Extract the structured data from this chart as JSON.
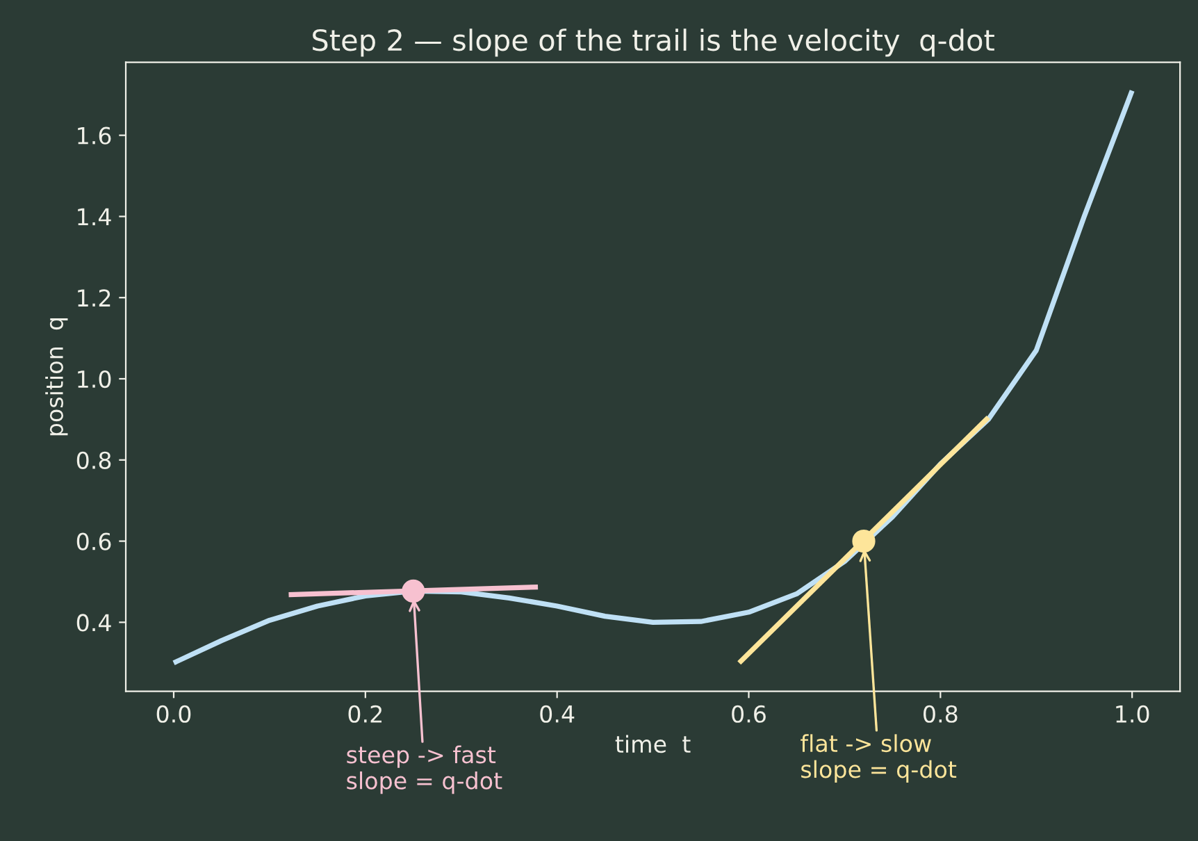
{
  "chart_data": {
    "type": "line",
    "title": "Step 2 — slope of the trail is the velocity  q-dot",
    "xlabel": "time  t",
    "ylabel": "position  q",
    "x": [
      0,
      0.05,
      0.1,
      0.15,
      0.2,
      0.25,
      0.3,
      0.35,
      0.4,
      0.45,
      0.5,
      0.55,
      0.6,
      0.65,
      0.7,
      0.75,
      0.8,
      0.85,
      0.9,
      0.95,
      1.0
    ],
    "series": [
      {
        "color": "#bfe0f5",
        "values": [
          0.3,
          0.355,
          0.405,
          0.44,
          0.465,
          0.477,
          0.475,
          0.46,
          0.44,
          0.415,
          0.4,
          0.402,
          0.425,
          0.47,
          0.55,
          0.66,
          0.79,
          0.9,
          1.07,
          1.4,
          1.71
        ]
      },
      {
        "type": "line",
        "color": "#f7c1d0",
        "x": [
          0.12,
          0.38
        ],
        "values": [
          0.468,
          0.487
        ]
      },
      {
        "type": "line",
        "color": "#fde59a",
        "x": [
          0.59,
          0.85
        ],
        "values": [
          0.3,
          0.905
        ]
      },
      {
        "type": "scatter",
        "color": "#f7c1d0",
        "x": [
          0.25
        ],
        "values": [
          0.477
        ],
        "marker": "circle"
      },
      {
        "type": "scatter",
        "color": "#fde59a",
        "x": [
          0.72
        ],
        "values": [
          0.6
        ],
        "marker": "circle"
      }
    ],
    "annotations": [
      {
        "text": "steep -> fast\nslope = q-dot",
        "x": 0.25,
        "y": 0.477
      },
      {
        "text": "flat -> slow\nslope = q-dot",
        "x": 0.72,
        "y": 0.6
      }
    ],
    "xlim": [
      -0.05,
      1.05
    ],
    "ylim": [
      0.23,
      1.78
    ],
    "xticks": [
      {
        "value": 0.0,
        "label": "0.0"
      },
      0.2,
      0.4,
      0.6,
      0.8,
      {
        "value": 1.0,
        "label": "1.0"
      }
    ],
    "yticks": [
      0.4,
      0.6,
      0.8,
      {
        "value": 1.0,
        "label": "1.0"
      },
      1.2,
      1.4,
      1.6
    ],
    "grid": false,
    "legend": false
  }
}
